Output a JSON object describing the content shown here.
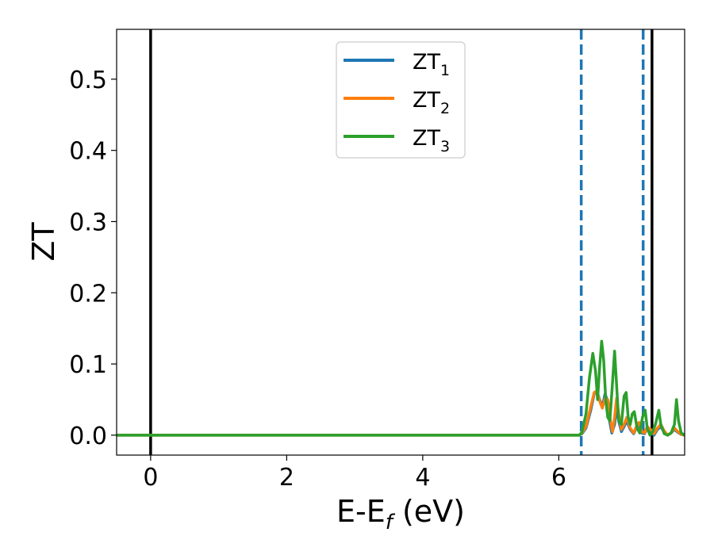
{
  "chart_data": {
    "type": "line",
    "xlabel": "E-E",
    "xlabel_sub": "f",
    "xlabel_unit": " (eV)",
    "ylabel": "ZT",
    "xlim": [
      -0.5,
      7.85
    ],
    "ylim": [
      -0.028,
      0.57
    ],
    "x_ticks": [
      0,
      2,
      4,
      6
    ],
    "x_tick_labels": [
      "0",
      "2",
      "4",
      "6"
    ],
    "y_ticks": [
      0.0,
      0.1,
      0.2,
      0.3,
      0.4,
      0.5
    ],
    "y_tick_labels": [
      "0.0",
      "0.1",
      "0.2",
      "0.3",
      "0.4",
      "0.5"
    ],
    "legend_position": "top-center",
    "vertical_lines": [
      {
        "x": 0.0,
        "style": "solid",
        "color": "#000000"
      },
      {
        "x": 7.37,
        "style": "solid",
        "color": "#000000"
      },
      {
        "x": 6.33,
        "style": "dashed",
        "color": "#1f77b4"
      },
      {
        "x": 7.24,
        "style": "dashed",
        "color": "#1f77b4"
      }
    ],
    "series": [
      {
        "name": "ZT",
        "sub": "1",
        "color": "#1f77b4",
        "points": [
          [
            -0.5,
            0
          ],
          [
            6.3,
            0
          ],
          [
            6.34,
            0.002
          ],
          [
            6.4,
            0.01
          ],
          [
            6.47,
            0.035
          ],
          [
            6.52,
            0.058
          ],
          [
            6.56,
            0.062
          ],
          [
            6.6,
            0.05
          ],
          [
            6.64,
            0.04
          ],
          [
            6.68,
            0.058
          ],
          [
            6.71,
            0.05
          ],
          [
            6.75,
            0.018
          ],
          [
            6.78,
            0.003
          ],
          [
            6.82,
            0.015
          ],
          [
            6.85,
            0.04
          ],
          [
            6.88,
            0.02
          ],
          [
            6.92,
            0.005
          ],
          [
            6.96,
            0.012
          ],
          [
            7.0,
            0.02
          ],
          [
            7.05,
            0.008
          ],
          [
            7.1,
            0.002
          ],
          [
            7.14,
            0.01
          ],
          [
            7.18,
            0.015
          ],
          [
            7.22,
            0.003
          ],
          [
            7.26,
            0.002
          ],
          [
            7.3,
            0.01
          ],
          [
            7.35,
            0.005
          ],
          [
            7.4,
            0.0
          ],
          [
            7.45,
            0.008
          ],
          [
            7.5,
            0.012
          ],
          [
            7.55,
            0.004
          ],
          [
            7.6,
            0.0
          ],
          [
            7.65,
            0.003
          ],
          [
            7.7,
            0.008
          ],
          [
            7.75,
            0.004
          ],
          [
            7.8,
            0.001
          ],
          [
            7.85,
            0.0
          ]
        ]
      },
      {
        "name": "ZT",
        "sub": "2",
        "color": "#ff7f0e",
        "points": [
          [
            -0.5,
            0
          ],
          [
            6.3,
            0
          ],
          [
            6.34,
            0.003
          ],
          [
            6.4,
            0.012
          ],
          [
            6.47,
            0.04
          ],
          [
            6.52,
            0.06
          ],
          [
            6.56,
            0.062
          ],
          [
            6.6,
            0.048
          ],
          [
            6.64,
            0.038
          ],
          [
            6.68,
            0.052
          ],
          [
            6.72,
            0.05
          ],
          [
            6.76,
            0.02
          ],
          [
            6.79,
            0.005
          ],
          [
            6.82,
            0.025
          ],
          [
            6.85,
            0.052
          ],
          [
            6.88,
            0.03
          ],
          [
            6.92,
            0.008
          ],
          [
            6.96,
            0.015
          ],
          [
            7.0,
            0.025
          ],
          [
            7.05,
            0.01
          ],
          [
            7.1,
            0.003
          ],
          [
            7.14,
            0.012
          ],
          [
            7.18,
            0.018
          ],
          [
            7.22,
            0.005
          ],
          [
            7.26,
            0.003
          ],
          [
            7.3,
            0.012
          ],
          [
            7.35,
            0.008
          ],
          [
            7.4,
            0.002
          ],
          [
            7.45,
            0.01
          ],
          [
            7.5,
            0.015
          ],
          [
            7.55,
            0.006
          ],
          [
            7.6,
            0.0
          ],
          [
            7.65,
            0.003
          ],
          [
            7.7,
            0.01
          ],
          [
            7.75,
            0.005
          ],
          [
            7.8,
            0.001
          ],
          [
            7.85,
            0.0
          ]
        ]
      },
      {
        "name": "ZT",
        "sub": "3",
        "color": "#2ca02c",
        "points": [
          [
            -0.5,
            0
          ],
          [
            6.3,
            0
          ],
          [
            6.34,
            0.004
          ],
          [
            6.4,
            0.03
          ],
          [
            6.45,
            0.08
          ],
          [
            6.5,
            0.115
          ],
          [
            6.54,
            0.09
          ],
          [
            6.57,
            0.05
          ],
          [
            6.6,
            0.095
          ],
          [
            6.63,
            0.132
          ],
          [
            6.66,
            0.105
          ],
          [
            6.69,
            0.05
          ],
          [
            6.72,
            0.025
          ],
          [
            6.75,
            0.02
          ],
          [
            6.78,
            0.06
          ],
          [
            6.82,
            0.118
          ],
          [
            6.85,
            0.07
          ],
          [
            6.88,
            0.02
          ],
          [
            6.92,
            0.015
          ],
          [
            6.96,
            0.055
          ],
          [
            6.99,
            0.06
          ],
          [
            7.02,
            0.025
          ],
          [
            7.05,
            0.015
          ],
          [
            7.08,
            0.03
          ],
          [
            7.11,
            0.033
          ],
          [
            7.15,
            0.01
          ],
          [
            7.19,
            0.003
          ],
          [
            7.23,
            0.025
          ],
          [
            7.27,
            0.035
          ],
          [
            7.3,
            0.01
          ],
          [
            7.34,
            0.0
          ],
          [
            7.38,
            0.005
          ],
          [
            7.42,
            0.015
          ],
          [
            7.47,
            0.035
          ],
          [
            7.5,
            0.015
          ],
          [
            7.55,
            0.002
          ],
          [
            7.6,
            0.0
          ],
          [
            7.65,
            0.003
          ],
          [
            7.7,
            0.015
          ],
          [
            7.73,
            0.05
          ],
          [
            7.76,
            0.02
          ],
          [
            7.8,
            0.003
          ],
          [
            7.85,
            0.0
          ]
        ]
      }
    ]
  }
}
